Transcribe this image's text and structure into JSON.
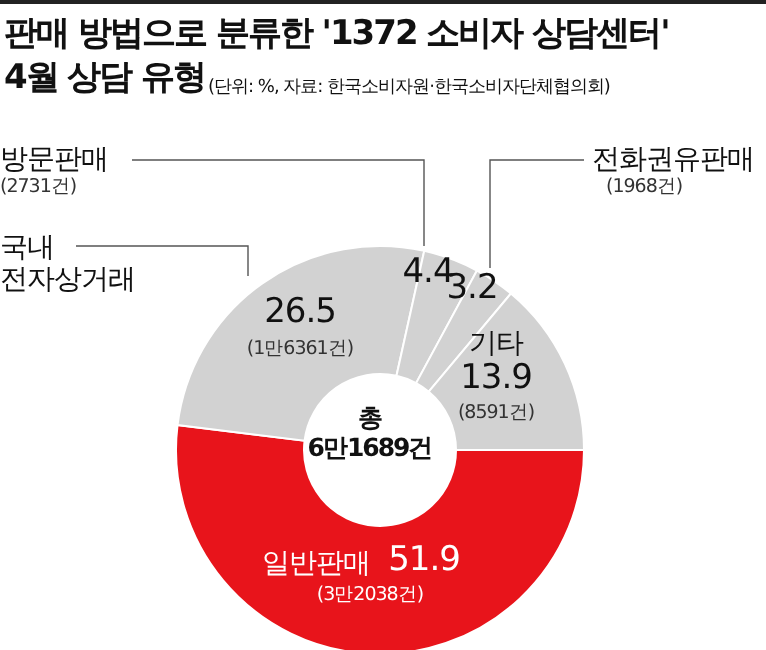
{
  "chart_data": {
    "type": "donut",
    "title": "판매 방법으로 분류한 '1372 소비자 상담센터' 4월 상담 유형",
    "subtitle": "(단위: %, 자료: 한국소비자원·한국소비자단체협의회)",
    "categories": [
      "일반판매",
      "국내 전자상거래",
      "방문판매",
      "전화권유판매",
      "기타"
    ],
    "values": [
      51.9,
      26.5,
      4.4,
      3.2,
      13.9
    ],
    "colors": [
      "#e8141b",
      "#d2d2d2",
      "#d2d2d2",
      "#d2d2d2",
      "#d2d2d2"
    ],
    "data_labels": true,
    "annotations": [
      "총 6만1689건",
      {
        "text": "(3만2038건)",
        "x": "일반판매"
      },
      {
        "text": "(1만6361건)",
        "x": "국내 전자상거래"
      },
      {
        "text": "(2731건)",
        "x": "방문판매"
      },
      {
        "text": "(1968건)",
        "x": "전화권유판매"
      },
      {
        "text": "(8591건)",
        "x": "기타"
      }
    ]
  }
}
